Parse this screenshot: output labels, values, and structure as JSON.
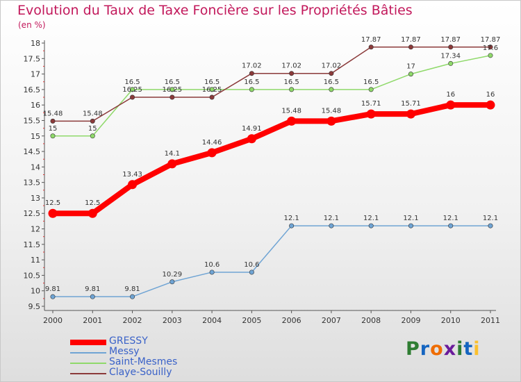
{
  "title": "Evolution du Taux de Taxe Foncière sur les Propriétés Bâties",
  "unit_label": "(en %)",
  "logo": {
    "letters": [
      {
        "ch": "P",
        "color": "#2e7d32"
      },
      {
        "ch": "r",
        "color": "#1565c0"
      },
      {
        "ch": "o",
        "color": "#ef6c00"
      },
      {
        "ch": "x",
        "color": "#6a1b9a"
      },
      {
        "ch": "i",
        "color": "#2e7d32"
      },
      {
        "ch": "t",
        "color": "#1565c0"
      },
      {
        "ch": "i",
        "color": "#fbc02d"
      }
    ]
  },
  "chart_data": {
    "type": "line",
    "title": "Evolution du Taux de Taxe Foncière sur les Propriétés Bâties",
    "ylabel": "(en %)",
    "xlabel": "",
    "x": [
      "2000",
      "2001",
      "2002",
      "2003",
      "2004",
      "2005",
      "2006",
      "2007",
      "2008",
      "2009",
      "2010",
      "2011"
    ],
    "ylim": [
      9.5,
      18
    ],
    "yticks": [
      "9.5",
      "10",
      "10.5",
      "11",
      "11.5",
      "12",
      "12.5",
      "13",
      "13.5",
      "14",
      "14.5",
      "15",
      "15.5",
      "16",
      "16.5",
      "17",
      "17.5",
      "18"
    ],
    "grid": false,
    "legend_position": "bottom-left",
    "series": [
      {
        "name": "GRESSY",
        "color": "#ff0000",
        "width": 8,
        "values": [
          12.5,
          12.5,
          13.43,
          14.1,
          14.46,
          14.91,
          15.48,
          15.48,
          15.71,
          15.71,
          16,
          16
        ],
        "labels": [
          "12.5",
          "12.5",
          "13.43",
          "14.1",
          "14.46",
          "14.91",
          "15.48",
          "15.48",
          "15.71",
          "15.71",
          "16",
          "16"
        ]
      },
      {
        "name": "Messy",
        "color": "#6fa4d4",
        "width": 1.5,
        "values": [
          9.81,
          9.81,
          9.81,
          10.29,
          10.6,
          10.6,
          12.1,
          12.1,
          12.1,
          12.1,
          12.1,
          12.1
        ],
        "labels": [
          "9.81",
          "9.81",
          "9.81",
          "10.29",
          "10.6",
          "10.6",
          "12.1",
          "12.1",
          "12.1",
          "12.1",
          "12.1",
          "12.1"
        ]
      },
      {
        "name": "Saint-Mesmes",
        "color": "#8fd96a",
        "width": 1.5,
        "values": [
          15,
          15,
          16.5,
          16.5,
          16.5,
          16.5,
          16.5,
          16.5,
          16.5,
          17,
          17.34,
          17.6
        ],
        "labels": [
          "15",
          "15",
          "16.5",
          "16.5",
          "16.5",
          "16.5",
          "16.5",
          "16.5",
          "16.5",
          "17",
          "17.34",
          "17.6"
        ]
      },
      {
        "name": "Claye-Souilly",
        "color": "#8b3a3a",
        "width": 1.5,
        "values": [
          15.48,
          15.48,
          16.25,
          16.25,
          16.25,
          17.02,
          17.02,
          17.02,
          17.87,
          17.87,
          17.87,
          17.87
        ],
        "labels": [
          "15.48",
          "15.48",
          "16.25",
          "16.25",
          "16.25",
          "17.02",
          "17.02",
          "17.02",
          "17.87",
          "17.87",
          "17.87",
          "17.87"
        ]
      }
    ]
  }
}
